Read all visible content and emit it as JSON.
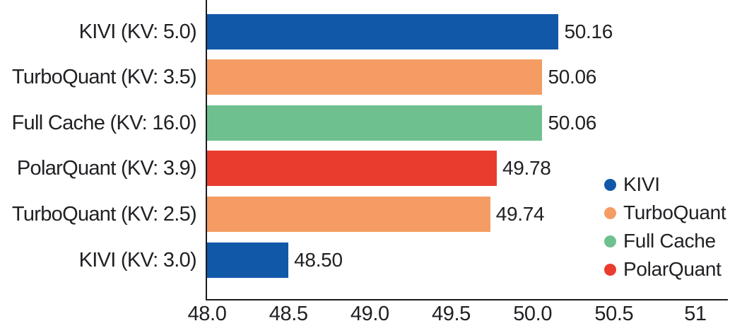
{
  "chart_data": {
    "type": "bar",
    "orientation": "horizontal",
    "categories": [
      "KIVI (KV: 5.0)",
      "TurboQuant (KV: 3.5)",
      "Full Cache (KV: 16.0)",
      "PolarQuant (KV: 3.9)",
      "TurboQuant (KV: 2.5)",
      "KIVI (KV: 3.0)"
    ],
    "values": [
      50.16,
      50.06,
      50.06,
      49.78,
      49.74,
      48.5
    ],
    "value_labels": [
      "50.16",
      "50.06",
      "50.06",
      "49.78",
      "49.74",
      "48.50"
    ],
    "bar_series": [
      "KIVI",
      "TurboQuant",
      "Full Cache",
      "PolarQuant",
      "TurboQuant",
      "KIVI"
    ],
    "series_colors": {
      "KIVI": "#1158A8",
      "TurboQuant": "#F49C63",
      "Full Cache": "#6FC08F",
      "PolarQuant": "#E93C2F"
    },
    "x_ticks": [
      {
        "label": "48.0",
        "value": 48.0
      },
      {
        "label": "48.5",
        "value": 48.5
      },
      {
        "label": "49.0",
        "value": 49.0
      },
      {
        "label": "49.5",
        "value": 49.5
      },
      {
        "label": "50.0",
        "value": 50.0
      },
      {
        "label": "50.5",
        "value": 50.5
      },
      {
        "label": "51",
        "value": 51.0
      }
    ],
    "xlim": [
      48.0,
      51.2
    ],
    "grid": false,
    "legend": [
      {
        "label": "KIVI",
        "color": "#1158A8"
      },
      {
        "label": "TurboQuant",
        "color": "#F49C63"
      },
      {
        "label": "Full Cache",
        "color": "#6FC08F"
      },
      {
        "label": "PolarQuant",
        "color": "#E93C2F"
      }
    ],
    "legend_position": "right-bottom"
  },
  "style": {
    "axis_color": "#1a1a1a",
    "text_color": "#202124",
    "background": "#FFFFFF"
  }
}
